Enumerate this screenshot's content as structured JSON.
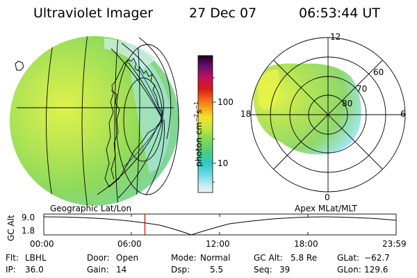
{
  "header": {
    "instrument": "Ultraviolet Imager",
    "date": "27 Dec 07",
    "time": "06:53:44 UT"
  },
  "colorbar": {
    "unit_prefix": "photon cm",
    "unit_exp1": "−2",
    "unit_s": "s",
    "unit_exp2": "−1",
    "tick_100": "100",
    "tick_10": "10"
  },
  "polar_plot": {
    "mlt_12": "12",
    "mlt_18": "18",
    "mlt_6": "6",
    "mlt_0": "0",
    "lat_60": "60",
    "lat_70": "70",
    "lat_80": "80"
  },
  "grid_labels": {
    "geographic": "Geographic Lat/Lon",
    "apex": "Apex MLat/MLT"
  },
  "altitude_plot": {
    "ylabel": "GC Alt",
    "ymax": "9.0",
    "ymin": "1.8",
    "xticks": [
      "00:00",
      "06:00",
      "12:00",
      "18:00",
      "23:59"
    ],
    "current_time_fraction": 0.287
  },
  "info": {
    "flt_label": "Flt:",
    "flt_value": "LBHL",
    "ip_label": "IP:",
    "ip_value": "36.0",
    "door_label": "Door:",
    "door_value": "Open",
    "gain_label": "Gain:",
    "gain_value": "14",
    "mode_label": "Mode:",
    "mode_value": "Normal",
    "dsp_label": "Dsp:",
    "dsp_value": "5.5",
    "gcalt_label": "GC Alt:",
    "gcalt_value": "5.8 Re",
    "seq_label": "Seq:",
    "seq_value": "39",
    "glat_label": "GLat:",
    "glat_value": "−62.7",
    "glon_label": "GLon:",
    "glon_value": "129.6"
  },
  "colors": {
    "background": "#ffffff",
    "emission_main": "#8fd85a",
    "emission_bright": "#d6f04a",
    "emission_edge": "#9fe6ee",
    "marker": "#cc0000"
  }
}
